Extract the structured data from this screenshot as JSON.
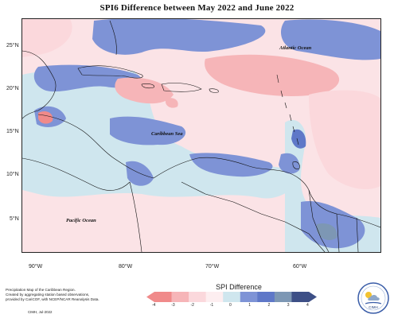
{
  "title": "SPI6 Difference between May 2022 and June 2022",
  "lat_labels": [
    "25°N",
    "20°N",
    "15°N",
    "10°N",
    "5°N"
  ],
  "lon_labels": [
    "90°W",
    "80°W",
    "70°W",
    "60°W"
  ],
  "ocean_labels": {
    "atlantic": "Atlantic Ocean",
    "caribbean": "Caribbean Sea",
    "pacific": "Pacific Ocean"
  },
  "credit_lines": [
    "Precipitation Map of the Caribbean Region.",
    "Created by aggregating station based observations,",
    "provided by CariCOF, with NCEP/NCAR Reanalysis Data."
  ],
  "cmh_date": "CIMH, Jul-2022",
  "legend": {
    "title": "SPI Difference",
    "ticks": [
      "-4",
      "-3",
      "-2",
      "-1",
      "0",
      "1",
      "2",
      "3",
      "4"
    ],
    "colors": [
      "#f08a8a",
      "#f6b5b8",
      "#fbd8dc",
      "#fdeef0",
      "#cfe6ee",
      "#7e93d6",
      "#5f78c8",
      "#7d97b4",
      "#3d4f86"
    ]
  },
  "logo_text": "CIMH"
}
